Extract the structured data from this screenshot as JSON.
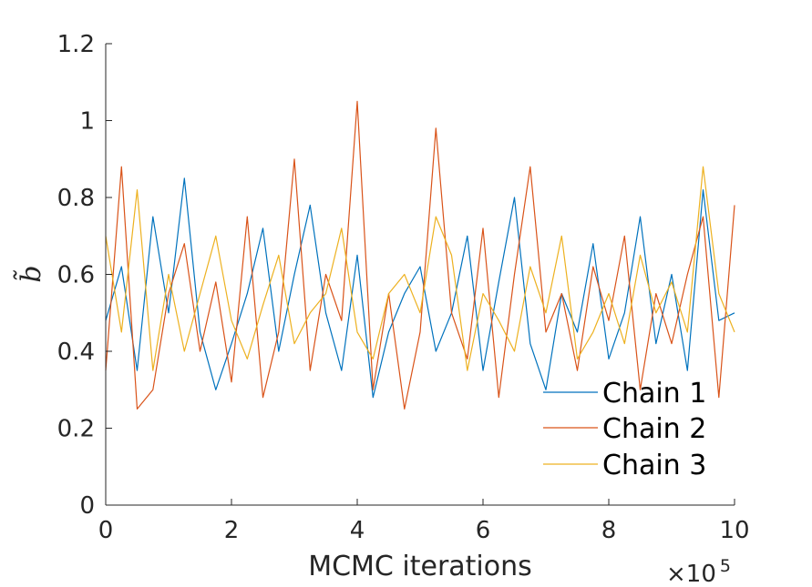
{
  "chart_data": {
    "type": "line",
    "xlabel": "MCMC iterations",
    "ylabel": "b̃",
    "x_multiplier_prefix": "×10",
    "x_multiplier_exponent": "5",
    "xlim": [
      0,
      10
    ],
    "ylim": [
      0,
      1.2
    ],
    "xticks": [
      0,
      2,
      4,
      6,
      8,
      10
    ],
    "yticks": [
      0,
      0.2,
      0.4,
      0.6,
      0.8,
      1,
      1.2
    ],
    "xtick_labels": [
      "0",
      "2",
      "4",
      "6",
      "8",
      "10"
    ],
    "ytick_labels": [
      "0",
      "0.2",
      "0.4",
      "0.6",
      "0.8",
      "1",
      "1.2"
    ],
    "grid": false,
    "legend_position": "bottom-right",
    "series": [
      {
        "name": "Chain 1",
        "color": "#0072BD",
        "x": [
          0,
          0.25,
          0.5,
          0.75,
          1,
          1.25,
          1.5,
          1.75,
          2,
          2.25,
          2.5,
          2.75,
          3,
          3.25,
          3.5,
          3.75,
          4,
          4.25,
          4.5,
          4.75,
          5,
          5.25,
          5.5,
          5.75,
          6,
          6.25,
          6.5,
          6.75,
          7,
          7.25,
          7.5,
          7.75,
          8,
          8.25,
          8.5,
          8.75,
          9,
          9.25,
          9.5,
          9.75,
          10
        ],
        "values": [
          0.48,
          0.62,
          0.35,
          0.75,
          0.5,
          0.85,
          0.45,
          0.3,
          0.42,
          0.55,
          0.72,
          0.4,
          0.6,
          0.78,
          0.5,
          0.35,
          0.65,
          0.28,
          0.45,
          0.55,
          0.62,
          0.4,
          0.5,
          0.7,
          0.35,
          0.58,
          0.8,
          0.42,
          0.3,
          0.55,
          0.45,
          0.68,
          0.38,
          0.5,
          0.75,
          0.42,
          0.6,
          0.35,
          0.82,
          0.48,
          0.5
        ]
      },
      {
        "name": "Chain 2",
        "color": "#D95319",
        "x": [
          0,
          0.25,
          0.5,
          0.75,
          1,
          1.25,
          1.5,
          1.75,
          2,
          2.25,
          2.5,
          2.75,
          3,
          3.25,
          3.5,
          3.75,
          4,
          4.25,
          4.5,
          4.75,
          5,
          5.25,
          5.5,
          5.75,
          6,
          6.25,
          6.5,
          6.75,
          7,
          7.25,
          7.5,
          7.75,
          8,
          8.25,
          8.5,
          8.75,
          9,
          9.25,
          9.5,
          9.75,
          10
        ],
        "values": [
          0.35,
          0.88,
          0.25,
          0.3,
          0.55,
          0.68,
          0.4,
          0.58,
          0.32,
          0.75,
          0.28,
          0.45,
          0.9,
          0.35,
          0.6,
          0.48,
          1.05,
          0.3,
          0.55,
          0.25,
          0.45,
          0.98,
          0.5,
          0.38,
          0.72,
          0.28,
          0.6,
          0.88,
          0.45,
          0.55,
          0.35,
          0.62,
          0.48,
          0.7,
          0.3,
          0.55,
          0.42,
          0.6,
          0.75,
          0.28,
          0.78
        ]
      },
      {
        "name": "Chain 3",
        "color": "#EDB120",
        "x": [
          0,
          0.25,
          0.5,
          0.75,
          1,
          1.25,
          1.5,
          1.75,
          2,
          2.25,
          2.5,
          2.75,
          3,
          3.25,
          3.5,
          3.75,
          4,
          4.25,
          4.5,
          4.75,
          5,
          5.25,
          5.5,
          5.75,
          6,
          6.25,
          6.5,
          6.75,
          7,
          7.25,
          7.5,
          7.75,
          8,
          8.25,
          8.5,
          8.75,
          9,
          9.25,
          9.5,
          9.75,
          10
        ],
        "values": [
          0.7,
          0.45,
          0.82,
          0.35,
          0.6,
          0.4,
          0.55,
          0.7,
          0.48,
          0.38,
          0.52,
          0.65,
          0.42,
          0.5,
          0.55,
          0.72,
          0.45,
          0.38,
          0.55,
          0.6,
          0.5,
          0.75,
          0.65,
          0.35,
          0.55,
          0.48,
          0.4,
          0.62,
          0.5,
          0.7,
          0.38,
          0.45,
          0.55,
          0.42,
          0.65,
          0.5,
          0.58,
          0.45,
          0.88,
          0.55,
          0.45
        ]
      }
    ]
  }
}
